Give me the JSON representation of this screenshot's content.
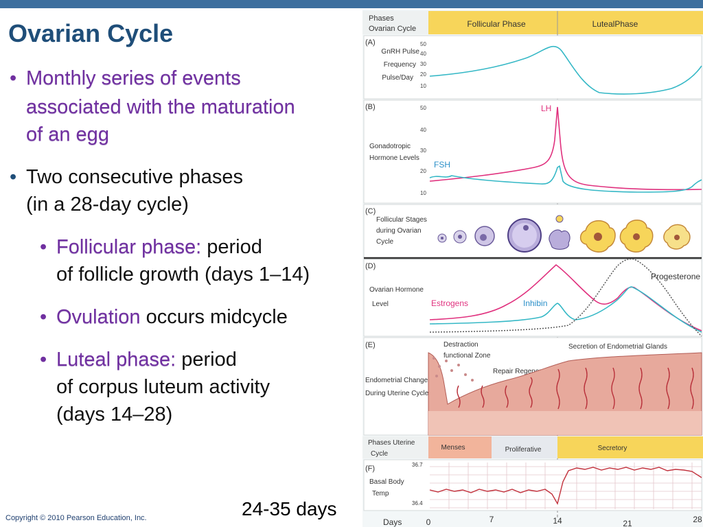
{
  "slide": {
    "title": "Ovarian Cycle",
    "bullets": [
      {
        "line1": "Monthly series of events",
        "line2": "associated with the maturation",
        "line3": "of an egg"
      },
      {
        "line1": "Two consecutive phases",
        "line2": "(in a 28-day cycle)"
      }
    ],
    "sub_bullets": [
      {
        "term": "Follicular phase:",
        "text1": "period",
        "text2": "of follicle growth (days 1–14)"
      },
      {
        "term": "Ovulation",
        "text1": "occurs midcycle"
      },
      {
        "term": "Luteal phase:",
        "text1": "period",
        "text2": "of corpus luteum activity",
        "text3": "(days 14–28)"
      }
    ],
    "cycle_length": "24-35 days",
    "copyright": "Copyright © 2010 Pearson Education, Inc."
  },
  "figure": {
    "phases_label_1": "Phases",
    "phases_label_2": "Ovarian Cycle",
    "follicular_phase": "Follicular Phase",
    "luteal_phase": "LutealPhase",
    "panel_a": {
      "letter": "(A)",
      "l1": "GnRH Pulse",
      "l2": "Frequency",
      "l3": "Pulse/Day",
      "ticks": [
        "50",
        "40",
        "30",
        "20",
        "10"
      ]
    },
    "panel_b": {
      "letter": "(B)",
      "l1": "Gonadotropic",
      "l2": "Hormone Levels",
      "lh": "LH",
      "fsh": "FSH",
      "ticks": [
        "50",
        "40",
        "30",
        "20",
        "10"
      ]
    },
    "panel_c": {
      "letter": "(C)",
      "l1": "Follicular Stages",
      "l2": "during Ovarian",
      "l3": "Cycle"
    },
    "panel_d": {
      "letter": "(D)",
      "l1": "Ovarian Hormone",
      "l2": "Level",
      "estrogens": "Estrogens",
      "inhibin": "Inhibin",
      "progesterone": "Progesterone"
    },
    "panel_e": {
      "letter": "(E)",
      "l1": "Endometrial Changes",
      "l2": "During Uterine Cycle",
      "destraction1": "Destraction",
      "destraction2": "functional Zone",
      "repair": "Repair Regeneration",
      "secretion": "Secretion of Endometrial Glands"
    },
    "uterine": {
      "l1": "Phases Uterine",
      "l2": "Cycle",
      "menses": "Menses",
      "proliferative": "Proliferative",
      "secretory": "Secretory"
    },
    "panel_f": {
      "letter": "(F)",
      "l1": "Basal Body",
      "l2": "Temp",
      "t_high": "36.7",
      "t_low": "36.4"
    },
    "days_label": "Days",
    "day_ticks": [
      "0",
      "7",
      "14",
      "21",
      "28"
    ]
  },
  "colors": {
    "pink": "#e0317e",
    "cyan": "#35b8c6",
    "phase_yellow": "#f7d55a",
    "menses": "#f2b49b",
    "title_blue": "#1f4e79"
  }
}
